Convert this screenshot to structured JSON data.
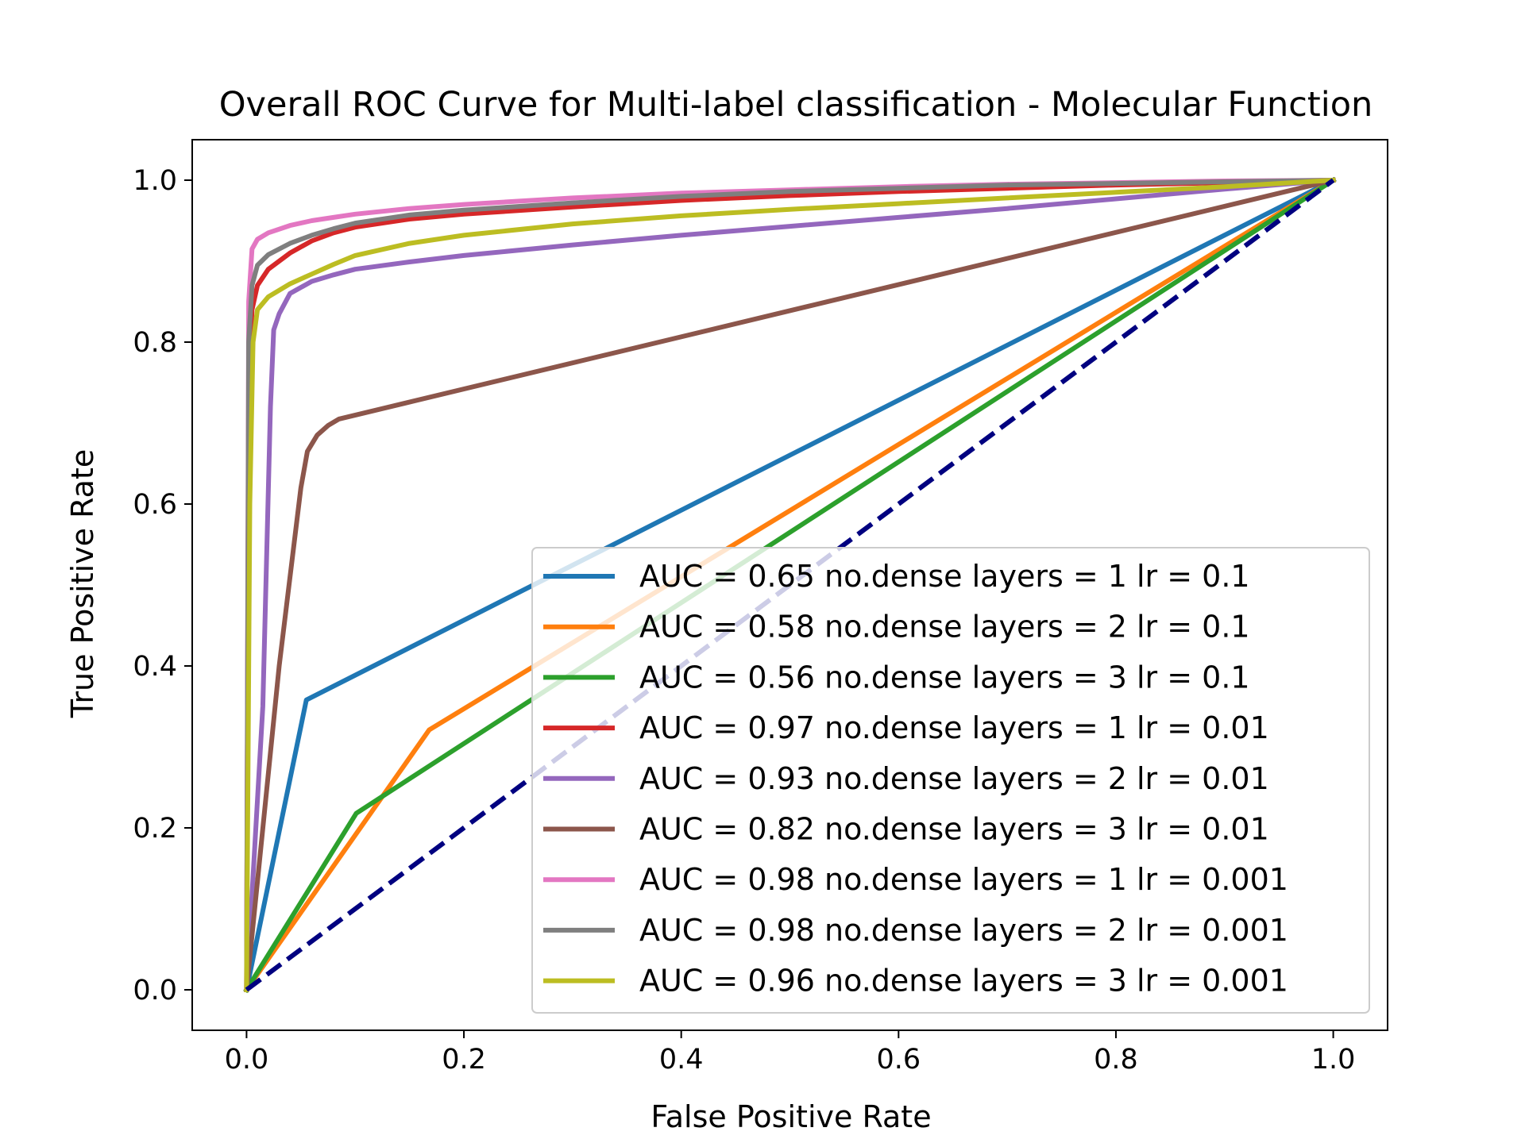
{
  "chart_data": {
    "type": "line",
    "title": "Overall ROC Curve for Multi-label classification - Molecular Function",
    "xlabel": "False Positive Rate",
    "ylabel": "True Positive Rate",
    "xlim": [
      -0.05,
      1.05
    ],
    "ylim": [
      -0.05,
      1.05
    ],
    "xticks": [
      "0.0",
      "0.2",
      "0.4",
      "0.6",
      "0.8",
      "1.0"
    ],
    "yticks": [
      "0.0",
      "0.2",
      "0.4",
      "0.6",
      "0.8",
      "1.0"
    ],
    "grid": false,
    "legend_position": "lower-right",
    "series": [
      {
        "name": "AUC = 0.65 no.dense layers = 1 lr = 0.1",
        "color": "#1f77b4",
        "x": [
          0,
          0.055,
          1.0
        ],
        "y": [
          0,
          0.358,
          1.0
        ]
      },
      {
        "name": "AUC = 0.58 no.dense layers = 2 lr = 0.1",
        "color": "#ff7f0e",
        "x": [
          0,
          0.168,
          1.0
        ],
        "y": [
          0,
          0.321,
          1.0
        ]
      },
      {
        "name": "AUC = 0.56 no.dense layers = 3 lr = 0.1",
        "color": "#2ca02c",
        "x": [
          0,
          0.101,
          1.0
        ],
        "y": [
          0,
          0.218,
          1.0
        ]
      },
      {
        "name": "AUC = 0.97 no.dense layers = 1 lr = 0.01",
        "color": "#d62728",
        "x": [
          0,
          0.002,
          0.005,
          0.01,
          0.02,
          0.04,
          0.06,
          0.08,
          0.1,
          0.15,
          0.2,
          0.3,
          0.4,
          0.5,
          0.6,
          0.7,
          0.8,
          0.9,
          1.0
        ],
        "y": [
          0,
          0.75,
          0.84,
          0.87,
          0.89,
          0.91,
          0.925,
          0.935,
          0.942,
          0.952,
          0.958,
          0.967,
          0.975,
          0.981,
          0.986,
          0.99,
          0.994,
          0.997,
          1.0
        ]
      },
      {
        "name": "AUC = 0.93 no.dense layers = 2 lr = 0.01",
        "color": "#9467bd",
        "x": [
          0,
          0.015,
          0.022,
          0.025,
          0.03,
          0.04,
          0.06,
          0.08,
          0.1,
          0.15,
          0.2,
          0.3,
          0.4,
          0.5,
          0.6,
          0.7,
          0.8,
          0.9,
          1.0
        ],
        "y": [
          0,
          0.35,
          0.72,
          0.815,
          0.835,
          0.86,
          0.875,
          0.883,
          0.89,
          0.899,
          0.907,
          0.92,
          0.932,
          0.943,
          0.954,
          0.965,
          0.977,
          0.989,
          1.0
        ]
      },
      {
        "name": "AUC = 0.82 no.dense layers = 3 lr = 0.01",
        "color": "#8c564b",
        "x": [
          0,
          0.03,
          0.05,
          0.056,
          0.065,
          0.075,
          0.085,
          1.0
        ],
        "y": [
          0,
          0.4,
          0.62,
          0.665,
          0.685,
          0.697,
          0.705,
          1.0
        ]
      },
      {
        "name": "AUC = 0.98 no.dense layers = 1 lr = 0.001",
        "color": "#e377c2",
        "x": [
          0,
          0.002,
          0.005,
          0.01,
          0.02,
          0.04,
          0.06,
          0.08,
          0.1,
          0.15,
          0.2,
          0.3,
          0.4,
          0.5,
          0.6,
          0.7,
          0.8,
          0.9,
          1.0
        ],
        "y": [
          0,
          0.85,
          0.915,
          0.927,
          0.935,
          0.944,
          0.95,
          0.954,
          0.958,
          0.965,
          0.97,
          0.978,
          0.984,
          0.988,
          0.992,
          0.995,
          0.997,
          0.999,
          1.0
        ]
      },
      {
        "name": "AUC = 0.98 no.dense layers = 2 lr = 0.001",
        "color": "#7f7f7f",
        "x": [
          0,
          0.002,
          0.005,
          0.01,
          0.02,
          0.04,
          0.06,
          0.08,
          0.1,
          0.15,
          0.2,
          0.3,
          0.4,
          0.5,
          0.6,
          0.7,
          0.8,
          0.9,
          1.0
        ],
        "y": [
          0,
          0.8,
          0.87,
          0.895,
          0.908,
          0.922,
          0.932,
          0.94,
          0.947,
          0.957,
          0.963,
          0.972,
          0.98,
          0.986,
          0.99,
          0.994,
          0.996,
          0.998,
          1.0
        ]
      },
      {
        "name": "AUC = 0.96 no.dense layers = 3 lr = 0.001",
        "color": "#bcbd22",
        "x": [
          0,
          0.003,
          0.006,
          0.01,
          0.02,
          0.04,
          0.06,
          0.08,
          0.1,
          0.15,
          0.2,
          0.3,
          0.4,
          0.5,
          0.6,
          0.7,
          0.8,
          0.9,
          1.0
        ],
        "y": [
          0,
          0.6,
          0.8,
          0.84,
          0.856,
          0.872,
          0.884,
          0.896,
          0.907,
          0.922,
          0.932,
          0.946,
          0.956,
          0.964,
          0.971,
          0.978,
          0.985,
          0.992,
          1.0
        ]
      }
    ],
    "reference_line": {
      "color": "#000080",
      "style": "dashed",
      "x": [
        0,
        1
      ],
      "y": [
        0,
        1
      ]
    }
  }
}
